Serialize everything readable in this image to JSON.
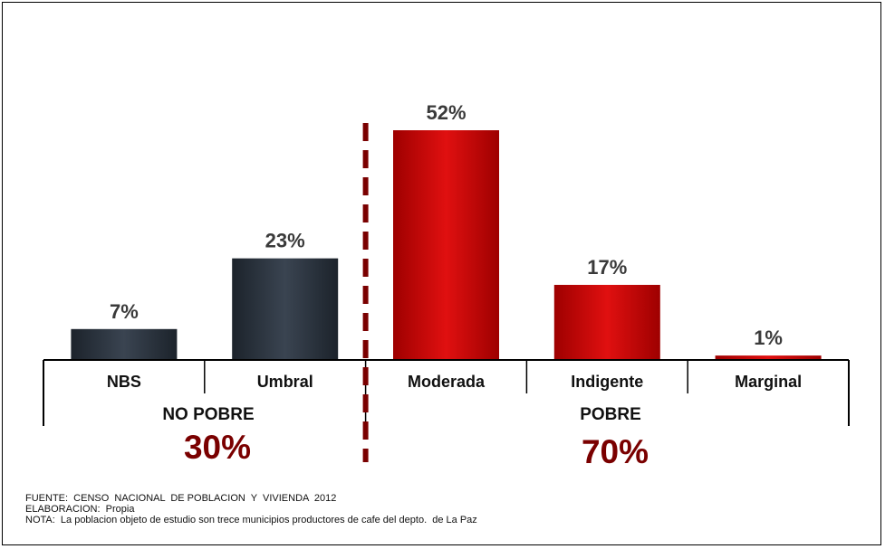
{
  "chart_data": {
    "type": "bar",
    "categories": [
      "NBS",
      "Umbral",
      "Moderada",
      "Indigente",
      "Marginal"
    ],
    "values": [
      7,
      23,
      52,
      17,
      1
    ],
    "value_labels": [
      "7%",
      "23%",
      "52%",
      "17%",
      "1%"
    ],
    "ylim": [
      0,
      55
    ],
    "bar_colors": [
      "#2a323c",
      "#2a323c",
      "#cc0000",
      "#cc0000",
      "#cc0000"
    ],
    "groups": [
      {
        "label": "NO POBRE",
        "total": "30%",
        "categories": [
          "NBS",
          "Umbral"
        ]
      },
      {
        "label": "POBRE",
        "total": "70%",
        "categories": [
          "Moderada",
          "Indigente",
          "Marginal"
        ]
      }
    ],
    "divider_color": "#7a0000",
    "group_total_color": "#7a0000"
  },
  "notes": {
    "fuente": "FUENTE:  CENSO  NACIONAL  DE POBLACION  Y  VIVIENDA  2012",
    "elaboracion": "ELABORACION:  Propia",
    "nota": "NOTA:  La poblacion objeto de estudio son trece municipios productores de cafe del depto.  de La Paz"
  }
}
